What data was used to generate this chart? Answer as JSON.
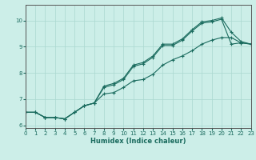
{
  "xlabel": "Humidex (Indice chaleur)",
  "background_color": "#cceee8",
  "grid_color": "#aad8d0",
  "line_color": "#1a6b5e",
  "hours": [
    0,
    1,
    2,
    3,
    4,
    5,
    6,
    7,
    8,
    9,
    10,
    11,
    12,
    13,
    14,
    15,
    16,
    17,
    18,
    19,
    20,
    21,
    22,
    23
  ],
  "line1": [
    6.5,
    6.5,
    6.3,
    6.3,
    6.25,
    6.5,
    6.75,
    6.85,
    7.5,
    7.6,
    7.8,
    8.3,
    8.4,
    8.65,
    9.1,
    9.1,
    9.3,
    9.65,
    9.95,
    10.0,
    10.1,
    9.55,
    9.2,
    9.1
  ],
  "line2": [
    6.5,
    6.5,
    6.3,
    6.3,
    6.25,
    6.5,
    6.75,
    6.85,
    7.45,
    7.55,
    7.75,
    8.25,
    8.35,
    8.6,
    9.05,
    9.05,
    9.25,
    9.6,
    9.9,
    9.95,
    10.05,
    9.1,
    9.15,
    9.1
  ],
  "line3": [
    6.5,
    6.5,
    6.3,
    6.3,
    6.25,
    6.5,
    6.75,
    6.85,
    7.2,
    7.25,
    7.45,
    7.7,
    7.75,
    7.95,
    8.3,
    8.5,
    8.65,
    8.85,
    9.1,
    9.25,
    9.35,
    9.35,
    9.15,
    9.1
  ],
  "xlim": [
    0,
    23
  ],
  "ylim": [
    5.9,
    10.6
  ],
  "yticks": [
    6,
    7,
    8,
    9,
    10
  ],
  "xticks": [
    0,
    1,
    2,
    3,
    4,
    5,
    6,
    7,
    8,
    9,
    10,
    11,
    12,
    13,
    14,
    15,
    16,
    17,
    18,
    19,
    20,
    21,
    22,
    23
  ]
}
